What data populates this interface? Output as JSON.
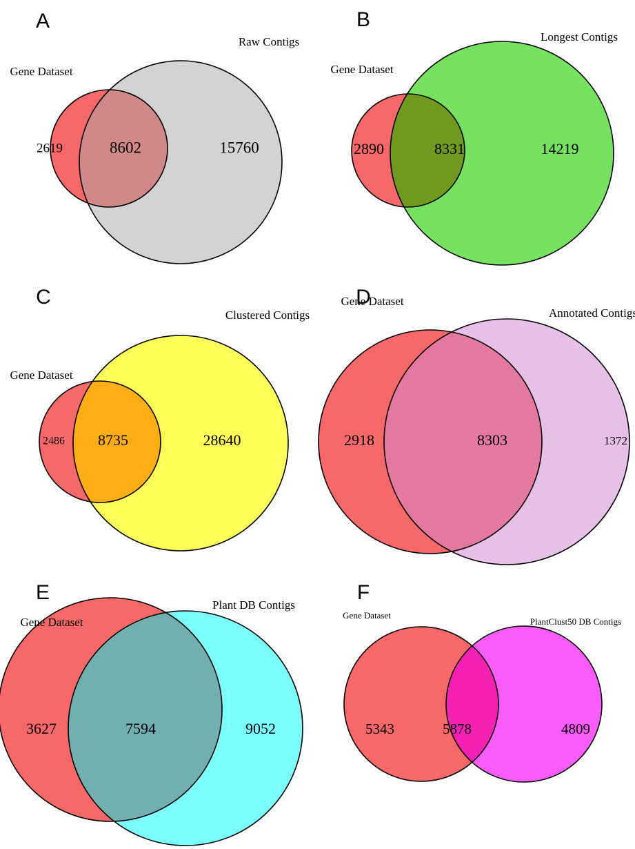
{
  "chart_data": [
    {
      "type": "venn",
      "panel": "A",
      "sets": [
        {
          "name": "Gene Dataset",
          "color": "#f76868"
        },
        {
          "name": "Raw Contigs",
          "color": "#d3d3d3"
        }
      ],
      "values": [
        2619,
        8602,
        15760
      ],
      "overlap_color": "#d08888"
    },
    {
      "type": "venn",
      "panel": "B",
      "sets": [
        {
          "name": "Gene Dataset",
          "color": "#f76868"
        },
        {
          "name": "Longest Contigs",
          "color": "#77e161"
        }
      ],
      "values": [
        2890,
        8331,
        14219
      ],
      "overlap_color": "#72991f"
    },
    {
      "type": "venn",
      "panel": "C",
      "sets": [
        {
          "name": "Gene Dataset",
          "color": "#f76868"
        },
        {
          "name": "Clustered Contigs",
          "color": "#ffff5a"
        }
      ],
      "values": [
        2486,
        8735,
        28640
      ],
      "overlap_color": "#fdae15"
    },
    {
      "type": "venn",
      "panel": "D",
      "sets": [
        {
          "name": "Gene Dataset",
          "color": "#f76868"
        },
        {
          "name": "Annotated Contigs",
          "color": "#e6c0e6"
        }
      ],
      "values": [
        2918,
        8303,
        1372
      ],
      "overlap_color": "#e478a0"
    },
    {
      "type": "venn",
      "panel": "E",
      "sets": [
        {
          "name": "Gene Dataset",
          "color": "#f76868"
        },
        {
          "name": "Plant DB Contigs",
          "color": "#7bffff"
        }
      ],
      "values": [
        3627,
        7594,
        9052
      ],
      "overlap_color": "#72b0b0"
    },
    {
      "type": "venn",
      "panel": "F",
      "sets": [
        {
          "name": "Gene Dataset",
          "color": "#f76868"
        },
        {
          "name": "PlantClust50 DB Contigs",
          "color": "#f95cf8"
        }
      ],
      "values": [
        5343,
        5878,
        4809
      ],
      "overlap_color": "#f521b5"
    }
  ]
}
